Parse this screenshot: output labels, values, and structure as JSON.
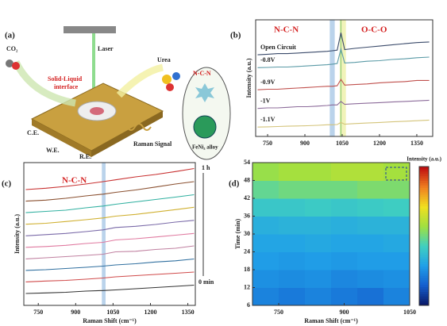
{
  "panel_a": {
    "label": "(a)",
    "co2": "CO₂",
    "laser": "Laser",
    "urea": "Urea",
    "interface": [
      "Solid-Liquid",
      "interface"
    ],
    "ncn": "N-C-N",
    "ce": "C.E.",
    "we": "W.E.",
    "re": "R.E.",
    "raman": "Raman Signal",
    "alloy": "FeNi₃ alloy"
  },
  "chart_data": [
    {
      "type": "line",
      "label": "(b)",
      "ylabel": "Intensity (a.u.)",
      "annotations": [
        "N-C-N",
        "O-C-O"
      ],
      "xlim": [
        702,
        1414
      ],
      "xticks": [
        750,
        900,
        1050,
        1200,
        1350
      ],
      "ylim": [
        0,
        10
      ],
      "bands": [
        {
          "from": 1000,
          "to": 1020,
          "color": "#a9c8e6"
        },
        {
          "from": 1040,
          "to": 1065,
          "color": "#eef0a8"
        },
        {
          "from": 1043,
          "to": 1047,
          "color": "#7cc46c"
        }
      ],
      "x": [
        710,
        750,
        790,
        830,
        870,
        910,
        950,
        990,
        1010,
        1030,
        1045,
        1060,
        1100,
        1150,
        1200,
        1250,
        1300,
        1350,
        1400
      ],
      "series": [
        {
          "name": "Open Circuit",
          "color": "#3a4a6a",
          "values": [
            7.0,
            7.05,
            7.1,
            7.1,
            7.15,
            7.2,
            7.25,
            7.3,
            7.35,
            7.4,
            8.9,
            7.45,
            7.55,
            7.65,
            7.75,
            7.85,
            7.95,
            8.05,
            8.1
          ]
        },
        {
          "name": "-0.8V",
          "color": "#5a9aa6",
          "values": [
            5.9,
            5.92,
            5.95,
            5.95,
            6.0,
            6.05,
            6.1,
            6.15,
            6.2,
            6.25,
            7.5,
            6.3,
            6.35,
            6.45,
            6.5,
            6.6,
            6.65,
            6.75,
            6.8
          ]
        },
        {
          "name": "-0.9V",
          "color": "#c0504d",
          "values": [
            4.0,
            4.05,
            4.05,
            4.1,
            4.15,
            4.2,
            4.25,
            4.3,
            4.3,
            4.35,
            4.9,
            4.4,
            4.45,
            4.5,
            4.6,
            4.65,
            4.7,
            4.8,
            4.8
          ]
        },
        {
          "name": "-1V",
          "color": "#8c6b9a",
          "values": [
            2.4,
            2.45,
            2.45,
            2.5,
            2.55,
            2.55,
            2.6,
            2.65,
            2.7,
            2.7,
            3.0,
            2.75,
            2.8,
            2.85,
            2.9,
            2.95,
            3.0,
            3.05,
            3.1
          ]
        },
        {
          "name": "-1.1V",
          "color": "#d4c47a",
          "values": [
            0.8,
            0.82,
            0.85,
            0.88,
            0.9,
            0.92,
            0.95,
            1.0,
            1.0,
            1.02,
            1.2,
            1.05,
            1.1,
            1.15,
            1.2,
            1.25,
            1.3,
            1.35,
            1.4
          ]
        }
      ]
    },
    {
      "type": "line",
      "label": "(c)",
      "ylabel": "Intensity (a.u.)",
      "xlabel": "Raman Shift (cm⁻¹)",
      "annotations": [
        "N-C-N",
        "1 h",
        "0 min"
      ],
      "xlim": [
        692,
        1380
      ],
      "xticks": [
        750,
        900,
        1050,
        1200,
        1350
      ],
      "ylim": [
        0,
        12
      ],
      "bands": [
        {
          "from": 1005,
          "to": 1020,
          "color": "#a9c8e6"
        }
      ],
      "x": [
        700,
        780,
        860,
        940,
        1010,
        1060,
        1140,
        1220,
        1300,
        1375
      ],
      "series": [
        {
          "color": "#333333",
          "values": [
            1.0,
            1.05,
            1.1,
            1.2,
            1.25,
            1.3,
            1.4,
            1.5,
            1.6,
            1.7
          ]
        },
        {
          "color": "#d04a4a",
          "values": [
            1.97,
            2.05,
            2.1,
            2.2,
            2.3,
            2.4,
            2.5,
            2.6,
            2.7,
            2.8
          ]
        },
        {
          "color": "#2f6f9f",
          "values": [
            2.94,
            3.0,
            3.1,
            3.2,
            3.3,
            3.4,
            3.5,
            3.65,
            3.75,
            3.9
          ]
        },
        {
          "color": "#c080a0",
          "values": [
            3.91,
            4.0,
            4.1,
            4.2,
            4.3,
            4.5,
            4.55,
            4.7,
            4.8,
            5.0
          ]
        },
        {
          "color": "#e07aa0",
          "values": [
            4.88,
            4.95,
            5.05,
            5.2,
            5.3,
            5.5,
            5.6,
            5.75,
            5.9,
            6.05
          ]
        },
        {
          "color": "#7a6aa8",
          "values": [
            5.85,
            5.95,
            6.05,
            6.2,
            6.35,
            6.55,
            6.65,
            6.8,
            7.0,
            7.15
          ]
        },
        {
          "color": "#d0b030",
          "values": [
            6.82,
            6.9,
            7.05,
            7.2,
            7.35,
            7.5,
            7.65,
            7.85,
            8.05,
            8.25
          ]
        },
        {
          "color": "#30b0a0",
          "values": [
            7.79,
            7.9,
            8.0,
            8.2,
            8.35,
            8.5,
            8.7,
            8.9,
            9.1,
            9.3
          ]
        },
        {
          "color": "#8a5030",
          "values": [
            8.76,
            8.85,
            9.0,
            9.2,
            9.35,
            9.5,
            9.7,
            9.95,
            10.2,
            10.4
          ]
        },
        {
          "color": "#c83030",
          "values": [
            9.73,
            9.85,
            10.0,
            10.2,
            10.4,
            10.55,
            10.8,
            11.0,
            11.25,
            11.5
          ]
        }
      ]
    },
    {
      "type": "heatmap",
      "label": "(d)",
      "ylabel": "Time (min)",
      "xlabel": "Raman Shift (cm⁻¹)",
      "colorbar_label": "Intensity (a.u.)",
      "xlim": [
        690,
        1050
      ],
      "xticks": [
        750,
        900,
        1050
      ],
      "ylim": [
        6,
        54
      ],
      "yticks": [
        6,
        12,
        18,
        24,
        30,
        36,
        42,
        48,
        54
      ],
      "x": [
        690,
        750,
        810,
        870,
        930,
        990,
        1050
      ],
      "y": [
        6,
        12,
        18,
        24,
        30,
        36,
        42,
        48,
        54
      ],
      "zlim": [
        0,
        1
      ],
      "colorscale": [
        "#0a1a6a",
        "#1560d0",
        "#20a0e8",
        "#40d0c0",
        "#a0e040",
        "#f0e020",
        "#f08020",
        "#c01010"
      ],
      "z": [
        [
          0.22,
          0.2,
          0.22,
          0.2,
          0.18,
          0.22
        ],
        [
          0.25,
          0.24,
          0.25,
          0.23,
          0.24,
          0.25
        ],
        [
          0.28,
          0.27,
          0.28,
          0.27,
          0.28,
          0.28
        ],
        [
          0.3,
          0.3,
          0.31,
          0.3,
          0.3,
          0.31
        ],
        [
          0.33,
          0.34,
          0.34,
          0.33,
          0.34,
          0.34
        ],
        [
          0.4,
          0.4,
          0.41,
          0.4,
          0.41,
          0.42
        ],
        [
          0.48,
          0.5,
          0.5,
          0.5,
          0.52,
          0.52
        ],
        [
          0.56,
          0.58,
          0.58,
          0.6,
          0.6,
          0.58
        ]
      ]
    }
  ]
}
